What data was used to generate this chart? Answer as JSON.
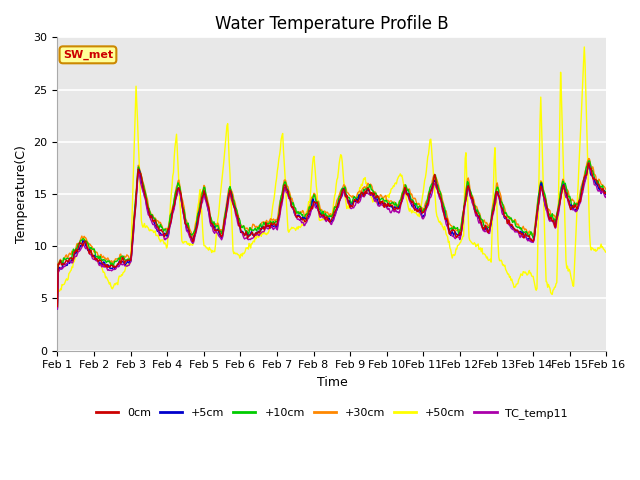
{
  "title": "Water Temperature Profile B",
  "xlabel": "Time",
  "ylabel": "Temperature(C)",
  "ylim": [
    0,
    30
  ],
  "xlim": [
    0,
    15
  ],
  "bg_color": "#e8e8e8",
  "plot_bg_color": "#dcdcdc",
  "fig_color": "#ffffff",
  "series_colors": {
    "0cm": "#cc0000",
    "+5cm": "#0000cc",
    "+10cm": "#00cc00",
    "+30cm": "#ff8800",
    "+50cm": "#ffff00",
    "TC_temp11": "#aa00aa"
  },
  "series_lw": 1.0,
  "annotation_text": "SW_met",
  "annotation_color": "#cc0000",
  "annotation_bg": "#ffff99",
  "annotation_border": "#cc8800",
  "tick_labels": [
    "Feb 1",
    "Feb 2",
    "Feb 3",
    "Feb 4",
    "Feb 5",
    "Feb 6",
    "Feb 7",
    "Feb 8",
    "Feb 9",
    "Feb 10",
    "Feb 11",
    "Feb 12",
    "Feb 13",
    "Feb 14",
    "Feb 15",
    "Feb 16"
  ],
  "yticks": [
    0,
    5,
    10,
    15,
    20,
    25,
    30
  ],
  "grid_color": "#ffffff",
  "title_fontsize": 12,
  "axis_fontsize": 9,
  "tick_fontsize": 8
}
